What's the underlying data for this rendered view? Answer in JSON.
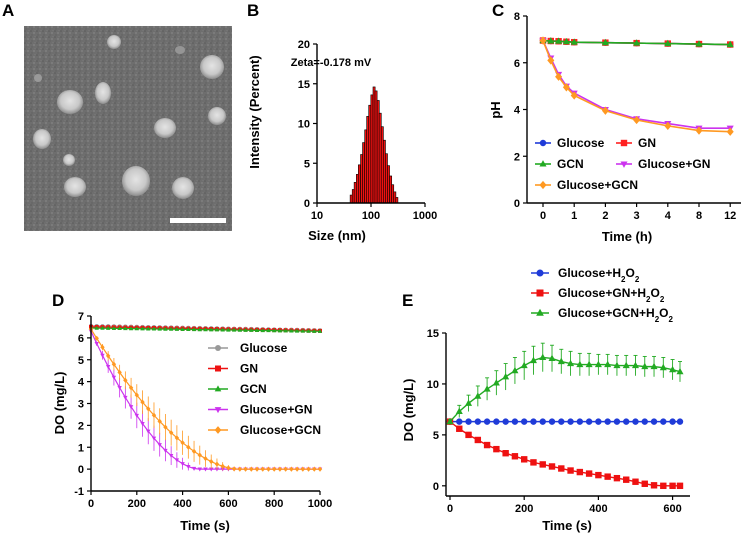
{
  "panels": {
    "A": "A",
    "B": "B",
    "C": "C",
    "D": "D",
    "E": "E"
  },
  "chart_data": [
    {
      "id": "B",
      "type": "bar",
      "annotation": "Zeta=-0.178 mV",
      "xlabel": "Size (nm)",
      "ylabel": "Intensity (Percent)",
      "xscale": "log",
      "xlim": [
        10,
        1000
      ],
      "ylim": [
        0,
        20
      ],
      "xticks": [
        "10",
        "100",
        "1000"
      ],
      "yticks": [
        "0",
        "5",
        "10",
        "15",
        "20"
      ],
      "categories": [
        43,
        47,
        51,
        56,
        61,
        67,
        73,
        80,
        87,
        95,
        104,
        114,
        124,
        136,
        148,
        162,
        177,
        193,
        211,
        231,
        252,
        276,
        301
      ],
      "values": [
        1.0,
        1.7,
        2.6,
        3.6,
        4.8,
        6.1,
        7.6,
        9.2,
        10.9,
        12.3,
        13.6,
        14.6,
        14.1,
        12.9,
        11.3,
        9.6,
        7.9,
        6.2,
        4.7,
        3.4,
        2.3,
        1.4,
        0.7
      ],
      "color": "#ee1111"
    },
    {
      "id": "C",
      "type": "line",
      "xlabel": "Time (h)",
      "ylabel": "pH",
      "ylim": [
        0,
        8
      ],
      "xticks": [
        "0",
        "1",
        "2",
        "3",
        "4",
        "8",
        "12"
      ],
      "yticks": [
        "0",
        "2",
        "4",
        "6",
        "8"
      ],
      "x_positions": [
        0,
        0.25,
        0.5,
        0.75,
        1,
        2,
        3,
        4,
        5,
        6
      ],
      "series": [
        {
          "name": "Glucose",
          "color": "#1f3bd8",
          "marker": "circle",
          "values": [
            6.95,
            6.93,
            6.92,
            6.9,
            6.88,
            6.86,
            6.84,
            6.82,
            6.8,
            6.78
          ]
        },
        {
          "name": "GN",
          "color": "#ff2020",
          "marker": "square",
          "values": [
            6.95,
            6.93,
            6.92,
            6.9,
            6.88,
            6.86,
            6.84,
            6.82,
            6.8,
            6.78
          ]
        },
        {
          "name": "GCN",
          "color": "#22aa22",
          "marker": "triangle",
          "values": [
            6.95,
            6.93,
            6.92,
            6.9,
            6.88,
            6.86,
            6.84,
            6.82,
            6.8,
            6.78
          ]
        },
        {
          "name": "Glucose+GN",
          "color": "#cc33ee",
          "marker": "triangle-down",
          "values": [
            6.95,
            6.2,
            5.5,
            5.0,
            4.7,
            4.0,
            3.6,
            3.4,
            3.2,
            3.2
          ]
        },
        {
          "name": "Glucose+GCN",
          "color": "#ff9922",
          "marker": "diamond",
          "values": [
            6.95,
            6.1,
            5.4,
            4.95,
            4.6,
            3.95,
            3.55,
            3.3,
            3.1,
            3.05
          ]
        }
      ],
      "legend_position": "bottom"
    },
    {
      "id": "D",
      "type": "line",
      "xlabel": "Time (s)",
      "ylabel": "DO (mg/L)",
      "xlim": [
        0,
        1000
      ],
      "ylim": [
        -1,
        7
      ],
      "xticks": [
        "0",
        "200",
        "400",
        "600",
        "800",
        "1000"
      ],
      "yticks": [
        "-1",
        "0",
        "1",
        "2",
        "3",
        "4",
        "5",
        "6",
        "7"
      ],
      "series": [
        {
          "name": "Glucose",
          "color": "#999999",
          "marker": "circle",
          "kind": "flat",
          "start": 6.55,
          "end": 6.35
        },
        {
          "name": "GN",
          "color": "#ee1111",
          "marker": "square",
          "kind": "flat",
          "start": 6.5,
          "end": 6.32
        },
        {
          "name": "GCN",
          "color": "#22aa22",
          "marker": "triangle",
          "kind": "flat",
          "start": 6.45,
          "end": 6.3
        },
        {
          "name": "Glucose+GN",
          "color": "#cc33ee",
          "marker": "triangle-down",
          "kind": "decay",
          "start": 6.3,
          "zero_at": 470
        },
        {
          "name": "Glucose+GCN",
          "color": "#ff9922",
          "marker": "diamond",
          "kind": "decay",
          "start": 6.4,
          "zero_at": 640
        }
      ],
      "legend_position": "right"
    },
    {
      "id": "E",
      "type": "line",
      "xlabel": "Time (s)",
      "ylabel": "DO (mg/L)",
      "xlim": [
        0,
        620
      ],
      "ylim": [
        -1,
        15
      ],
      "xticks": [
        "0",
        "200",
        "400",
        "600"
      ],
      "yticks": [
        "0",
        "5",
        "10",
        "15"
      ],
      "series": [
        {
          "name": "Glucose+H2O2",
          "label_main": "Glucose+H",
          "label_tail": "O",
          "color": "#1f3bd8",
          "marker": "circle",
          "x": [
            0,
            25,
            50,
            75,
            100,
            125,
            150,
            175,
            200,
            225,
            250,
            275,
            300,
            325,
            350,
            375,
            400,
            425,
            450,
            475,
            500,
            525,
            550,
            575,
            600,
            620
          ],
          "values": [
            6.3,
            6.3,
            6.3,
            6.3,
            6.3,
            6.3,
            6.3,
            6.3,
            6.3,
            6.3,
            6.3,
            6.3,
            6.3,
            6.3,
            6.3,
            6.3,
            6.3,
            6.3,
            6.3,
            6.3,
            6.3,
            6.3,
            6.3,
            6.3,
            6.3,
            6.3
          ]
        },
        {
          "name": "Glucose+GN+H2O2",
          "label_main": "Glucose+GN+H",
          "label_tail": "O",
          "color": "#ee1111",
          "marker": "square",
          "x": [
            0,
            25,
            50,
            75,
            100,
            125,
            150,
            175,
            200,
            225,
            250,
            275,
            300,
            325,
            350,
            375,
            400,
            425,
            450,
            475,
            500,
            525,
            550,
            575,
            600,
            620
          ],
          "values": [
            6.3,
            5.6,
            5.0,
            4.5,
            4.0,
            3.6,
            3.2,
            2.9,
            2.6,
            2.3,
            2.1,
            1.9,
            1.7,
            1.5,
            1.35,
            1.2,
            1.05,
            0.9,
            0.75,
            0.6,
            0.4,
            0.2,
            0.05,
            0.0,
            0.0,
            0.0
          ]
        },
        {
          "name": "Glucose+GCN+H2O2",
          "label_main": "Glucose+GCN+H",
          "label_tail": "O",
          "color": "#22aa22",
          "marker": "triangle",
          "x": [
            0,
            25,
            50,
            75,
            100,
            125,
            150,
            175,
            200,
            225,
            250,
            275,
            300,
            325,
            350,
            375,
            400,
            425,
            450,
            475,
            500,
            525,
            550,
            575,
            600,
            620
          ],
          "values": [
            6.3,
            7.3,
            8.1,
            8.8,
            9.5,
            10.1,
            10.7,
            11.3,
            11.8,
            12.3,
            12.6,
            12.5,
            12.2,
            12.0,
            11.9,
            11.9,
            11.9,
            11.9,
            11.8,
            11.8,
            11.8,
            11.7,
            11.7,
            11.6,
            11.4,
            11.2
          ],
          "errors": [
            0.2,
            0.6,
            0.8,
            1.0,
            1.1,
            1.2,
            1.3,
            1.3,
            1.4,
            1.4,
            1.4,
            1.3,
            1.2,
            1.2,
            1.1,
            1.1,
            1.0,
            1.0,
            1.0,
            1.0,
            1.0,
            1.0,
            1.0,
            1.0,
            1.0,
            1.0
          ]
        }
      ],
      "legend_position": "top"
    }
  ]
}
